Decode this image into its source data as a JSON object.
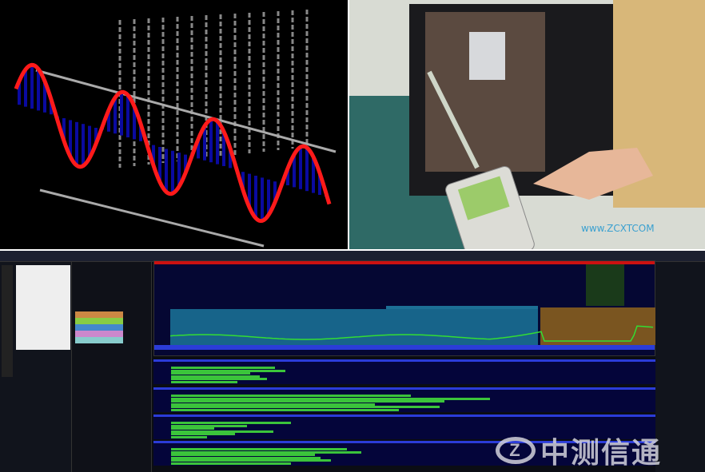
{
  "watermark": {
    "logo_letter": "Z",
    "text": "中测信通"
  },
  "photo_watermark": "www.ZCXTCOM",
  "colors": {
    "sine": "#ff1a1a",
    "fill": "#0a0aa0",
    "spectrum_bg": "#050733",
    "trace": "#33dd33",
    "accent_bar": "#2b3cd8",
    "title_bar": "#cc1111"
  },
  "icons": [
    "3d-sine-plot",
    "rf-meter-device",
    "spectrum-analyzer-software"
  ]
}
